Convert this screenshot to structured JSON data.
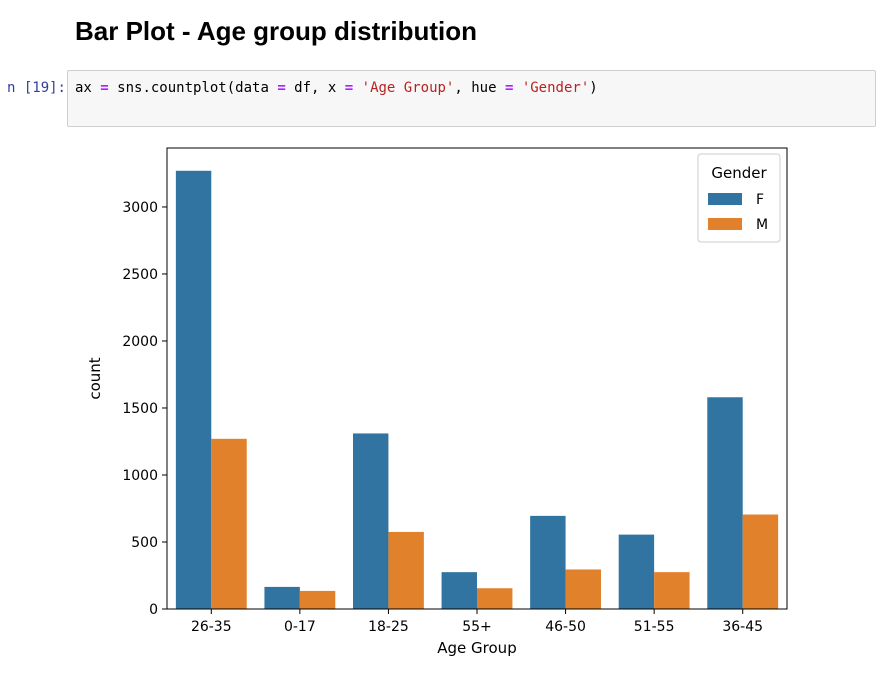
{
  "notebook": {
    "heading": "Bar Plot - Age group distribution",
    "prompt": "n [19]:",
    "code": {
      "tokens": [
        {
          "text": "ax ",
          "kind": "plain"
        },
        {
          "text": "=",
          "kind": "op"
        },
        {
          "text": " sns.countplot(data ",
          "kind": "plain"
        },
        {
          "text": "=",
          "kind": "op"
        },
        {
          "text": " df, x ",
          "kind": "plain"
        },
        {
          "text": "=",
          "kind": "op"
        },
        {
          "text": " ",
          "kind": "plain"
        },
        {
          "text": "'Age Group'",
          "kind": "str"
        },
        {
          "text": ", hue ",
          "kind": "plain"
        },
        {
          "text": "=",
          "kind": "op"
        },
        {
          "text": " ",
          "kind": "plain"
        },
        {
          "text": "'Gender'",
          "kind": "str"
        },
        {
          "text": ")",
          "kind": "plain"
        }
      ]
    }
  },
  "chart_data": {
    "type": "bar",
    "categories": [
      "26-35",
      "0-17",
      "18-25",
      "55+",
      "46-50",
      "51-55",
      "36-45"
    ],
    "series": [
      {
        "name": "F",
        "color": "#3274a1",
        "values": [
          3270,
          165,
          1310,
          275,
          695,
          555,
          1580
        ]
      },
      {
        "name": "M",
        "color": "#e1812c",
        "values": [
          1270,
          135,
          575,
          155,
          295,
          275,
          705
        ]
      }
    ],
    "xlabel": "Age Group",
    "ylabel": "count",
    "ylim": [
      0,
      3440
    ],
    "yticks": [
      0,
      500,
      1000,
      1500,
      2000,
      2500,
      3000
    ],
    "ytick_labels": [
      "0",
      "500",
      "1000",
      "1500",
      "2000",
      "2500",
      "3000"
    ],
    "legend": {
      "title": "Gender",
      "placement": "top-right"
    },
    "grid": false
  }
}
